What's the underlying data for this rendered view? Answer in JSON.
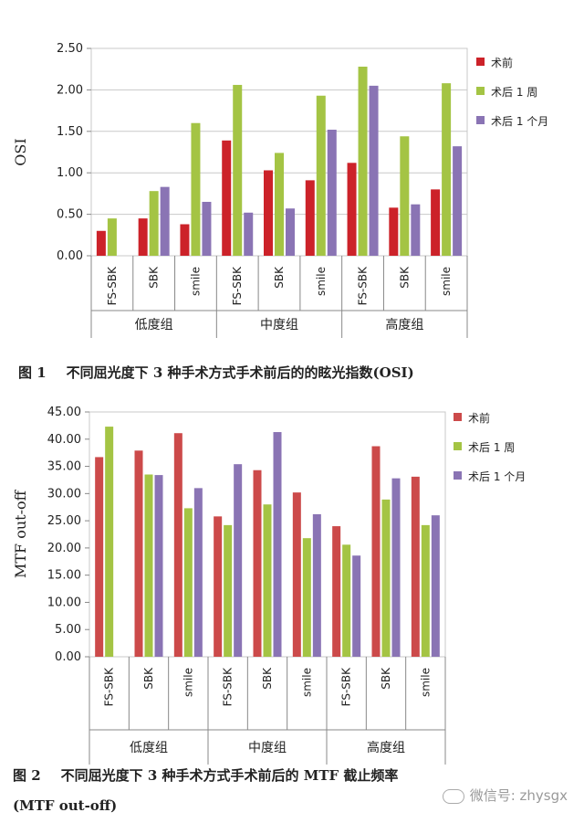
{
  "chart_data": [
    {
      "type": "bar",
      "ylabel": "OSI",
      "ylim": [
        0,
        2.5
      ],
      "yticks": [
        "0.00",
        "0.50",
        "1.00",
        "1.50",
        "2.00",
        "2.50"
      ],
      "grid": true,
      "legend_position": "right",
      "groups": [
        "低度组",
        "中度组",
        "高度组"
      ],
      "categories": [
        "FS-SBK",
        "SBK",
        "smile",
        "FS-SBK",
        "SBK",
        "smile",
        "FS-SBK",
        "SBK",
        "smile"
      ],
      "series": [
        {
          "name": "术前",
          "color": "#cc2229",
          "values": [
            0.3,
            0.45,
            0.38,
            1.39,
            1.03,
            0.91,
            1.12,
            0.58,
            0.8
          ]
        },
        {
          "name": "术后 1 周",
          "color": "#a4c444",
          "values": [
            0.45,
            0.78,
            1.6,
            2.06,
            1.24,
            1.93,
            2.28,
            1.44,
            2.08
          ]
        },
        {
          "name": "术后 1 个月",
          "color": "#8a74b4",
          "values": [
            null,
            0.83,
            0.65,
            0.52,
            0.57,
            1.52,
            2.05,
            0.62,
            1.32
          ]
        }
      ]
    },
    {
      "type": "bar",
      "ylabel": "MTF  out-off",
      "ylim": [
        0,
        45
      ],
      "yticks": [
        "0.00",
        "5.00",
        "10.00",
        "15.00",
        "20.00",
        "25.00",
        "30.00",
        "35.00",
        "40.00",
        "45.00"
      ],
      "grid": false,
      "legend_position": "right",
      "groups": [
        "低度组",
        "中度组",
        "高度组"
      ],
      "categories": [
        "FS-SBK",
        "SBK",
        "smile",
        "FS-SBK",
        "SBK",
        "smile",
        "FS-SBK",
        "SBK",
        "smile"
      ],
      "series": [
        {
          "name": "术前",
          "color": "#cc4a4a",
          "values": [
            36.7,
            37.9,
            41.1,
            25.8,
            34.3,
            30.2,
            24.0,
            38.7,
            33.1
          ]
        },
        {
          "name": "术后 1 周",
          "color": "#a4c444",
          "values": [
            42.3,
            33.5,
            27.3,
            24.2,
            28.0,
            21.8,
            20.6,
            28.9,
            24.2
          ]
        },
        {
          "name": "术后 1 个月",
          "color": "#8a74b4",
          "values": [
            null,
            33.4,
            31.0,
            35.4,
            41.3,
            26.2,
            18.6,
            32.8,
            26.0
          ]
        }
      ]
    }
  ],
  "captions": {
    "fig1_num": "图 1",
    "fig1_text": "不同屈光度下 3 种手术方式手术前后的的眩光指数(OSI)",
    "fig2_num": "图 2",
    "fig2_text": "不同屈光度下 3 种手术方式手术前后的 MTF 截止频率",
    "fig2_text2": "(MTF  out-off)"
  },
  "watermark": "微信号: zhysgx"
}
